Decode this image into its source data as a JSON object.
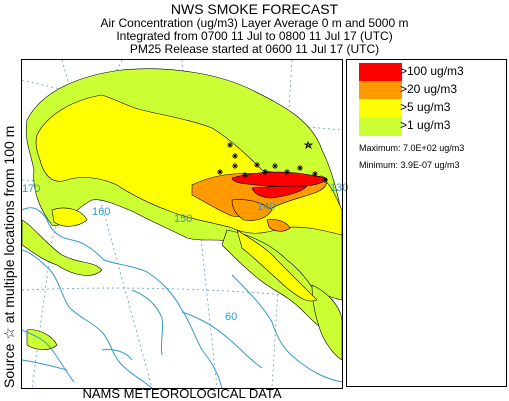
{
  "header": {
    "title": "NWS SMOKE FORECAST",
    "line1": "Air Concentration (ug/m3) Layer Average    0 m and  5000 m",
    "line2": "Integrated from 0700 11 Jul to 0800 11 Jul 17 (UTC)",
    "line3": "PM25 Release started at 0600 11 Jul 17 (UTC)"
  },
  "side_label": "Source ☆ at multiple locations  from   100 m",
  "footer": "NAMS METEOROLOGICAL DATA",
  "legend": {
    "items": [
      {
        "label": ">100 ug/m3",
        "color": "#ff0000"
      },
      {
        "label": ">20 ug/m3",
        "color": "#ff9900"
      },
      {
        "label": ">5 ug/m3",
        "color": "#ffff00"
      },
      {
        "label": ">1 ug/m3",
        "color": "#ccff33"
      }
    ],
    "maximum": "Maximum: 7.0E+02 ug/m3",
    "minimum": "Minimum: 3.9E-07 ug/m3"
  },
  "map": {
    "grid_labels": [
      "170",
      "160",
      "150",
      "140",
      "130",
      "60"
    ],
    "colors": {
      "coast": "#3399cc",
      "contour": "#000000",
      "grid": "#6699cc"
    }
  }
}
